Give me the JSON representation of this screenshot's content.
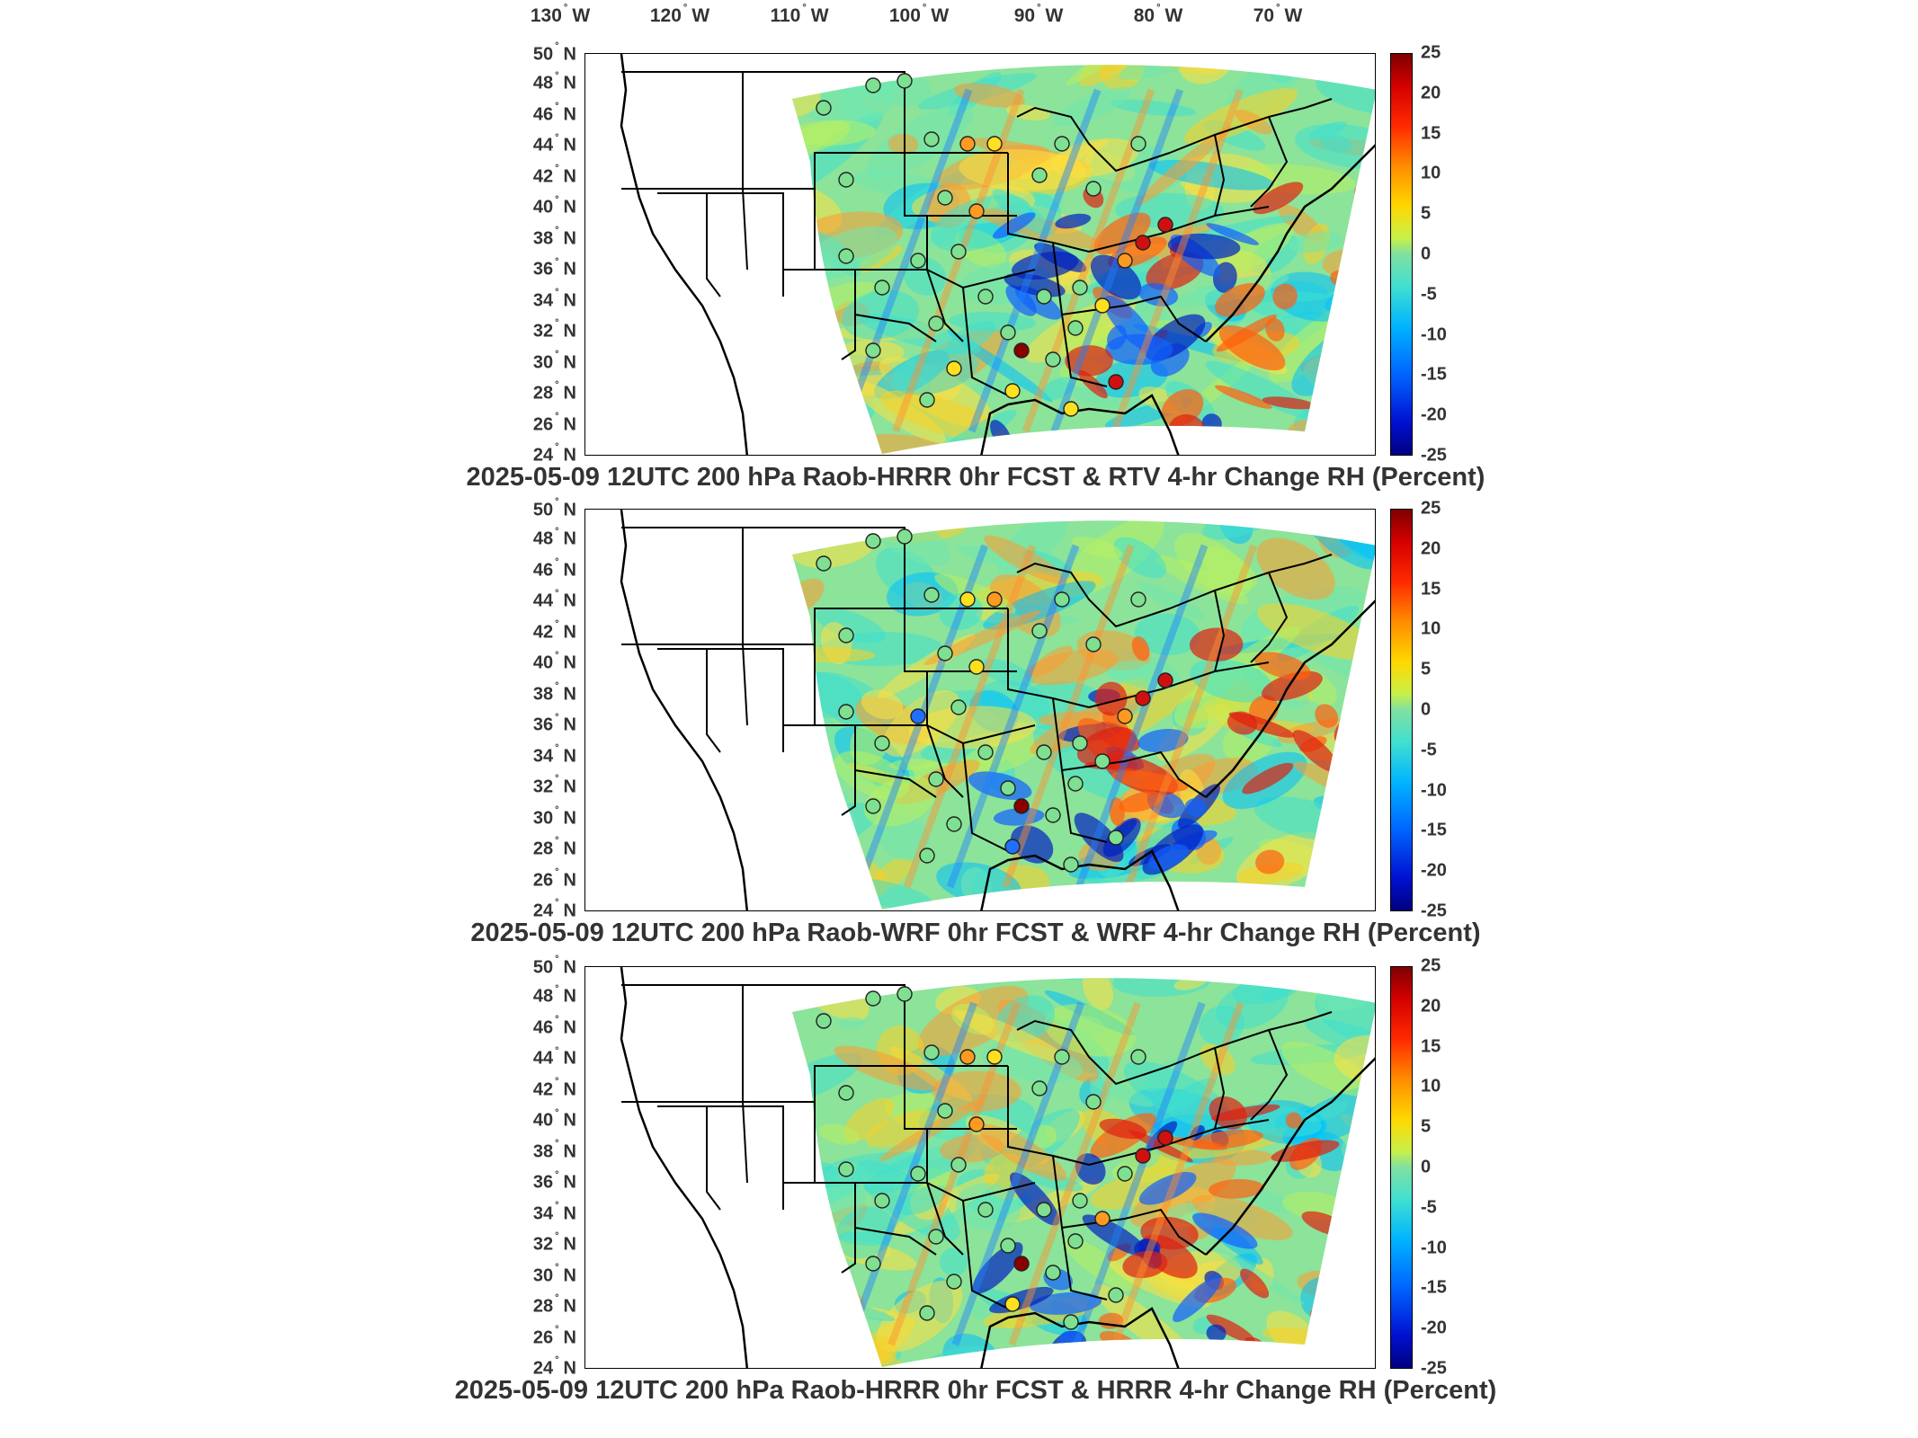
{
  "lon_labels": [
    "130",
    "W",
    "120",
    "W",
    "110",
    "W",
    "100",
    "W",
    "90",
    "W",
    "80",
    "W",
    "70",
    "W"
  ],
  "lon_ticks": [
    {
      "deg": "130",
      "dir": "W"
    },
    {
      "deg": "120",
      "dir": "W"
    },
    {
      "deg": "110",
      "dir": "W"
    },
    {
      "deg": "100",
      "dir": "W"
    },
    {
      "deg": "90",
      "dir": "W"
    },
    {
      "deg": "80",
      "dir": "W"
    },
    {
      "deg": "70",
      "dir": "W"
    }
  ],
  "lat_ticks": [
    {
      "deg": "50",
      "dir": "N"
    },
    {
      "deg": "48",
      "dir": "N"
    },
    {
      "deg": "46",
      "dir": "N"
    },
    {
      "deg": "44",
      "dir": "N"
    },
    {
      "deg": "42",
      "dir": "N"
    },
    {
      "deg": "40",
      "dir": "N"
    },
    {
      "deg": "38",
      "dir": "N"
    },
    {
      "deg": "36",
      "dir": "N"
    },
    {
      "deg": "34",
      "dir": "N"
    },
    {
      "deg": "32",
      "dir": "N"
    },
    {
      "deg": "30",
      "dir": "N"
    },
    {
      "deg": "28",
      "dir": "N"
    },
    {
      "deg": "26",
      "dir": "N"
    },
    {
      "deg": "24",
      "dir": "N"
    }
  ],
  "colorbar_ticks": [
    "25",
    "20",
    "15",
    "10",
    "5",
    "0",
    "-5",
    "-10",
    "-15",
    "-20",
    "-25"
  ],
  "colorbar_range": [
    -25,
    25
  ],
  "colors": {
    "high": "#7f0000",
    "low": "#00007f",
    "mid": "#80e0a0"
  },
  "panels": [
    {
      "title": "2025-05-09 12UTC 200 hPa Raob-HRRR 0hr FCST & RTV 4-hr Change RH (Percent)"
    },
    {
      "title": "2025-05-09 12UTC 200 hPa Raob-WRF 0hr FCST & WRF 4-hr Change RH (Percent)"
    },
    {
      "title": "2025-05-09 12UTC 200 hPa Raob-HRRR 0hr FCST & HRRR 4-hr Change RH (Percent)"
    }
  ]
}
